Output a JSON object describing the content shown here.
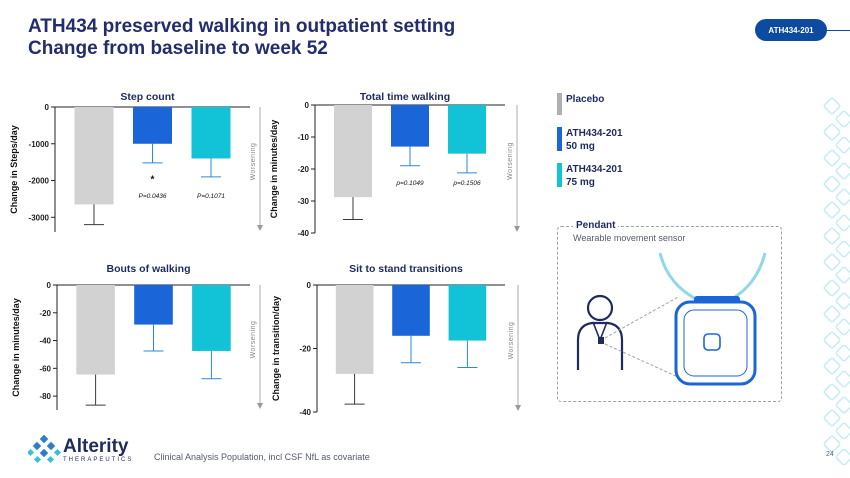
{
  "header": {
    "title_line1": "ATH434 preserved walking in outpatient setting",
    "title_line2": "Change from baseline to week 52",
    "tag": "ATH434-201"
  },
  "legend": [
    {
      "label": "Placebo",
      "sub": "",
      "color": "#aeb0b3"
    },
    {
      "label": "ATH434-201",
      "sub": "50 mg",
      "color": "#1a66d9"
    },
    {
      "label": "ATH434-201",
      "sub": "75 mg",
      "color": "#12c2d6"
    }
  ],
  "pendant": {
    "title": "Pendant",
    "subtitle": "Wearable movement sensor"
  },
  "worsening_label": "Worsening",
  "footer": {
    "brand": "Alterity",
    "brand_sub": "THERAPEUTICS",
    "note": "Clinical Analysis Population, incl CSF NfL as covariate",
    "page": "24"
  },
  "colors": {
    "placebo": "#d2d2d3",
    "dose50": "#1a66d9",
    "dose75": "#12c2d6",
    "errbar_placebo": "#3a3a3a",
    "errbar_active": "#2a8ad6"
  },
  "chart_data": [
    {
      "type": "bar",
      "title": "Step count",
      "ylabel": "Change in Steps/day",
      "categories": [
        "Placebo",
        "ATH434-201 50 mg",
        "ATH434-201 75 mg"
      ],
      "values": [
        -2650,
        -1000,
        -1400
      ],
      "errors": [
        550,
        520,
        500
      ],
      "ylim": [
        -3400,
        0
      ],
      "yticks": [
        0,
        -1000,
        -2000,
        -3000
      ],
      "ytick_labels": [
        "0",
        "-1000",
        "-2000",
        "-3000"
      ],
      "annotations": [
        {
          "bar": 1,
          "text": "*",
          "y": -2050
        },
        {
          "bar": 1,
          "text": "P=0.0436",
          "y": -2480
        },
        {
          "bar": 2,
          "text": "P=0.1071",
          "y": -2480
        }
      ]
    },
    {
      "type": "bar",
      "title": "Total time walking",
      "ylabel": "Change in minutes/day",
      "categories": [
        "Placebo",
        "ATH434-201 50 mg",
        "ATH434-201 75 mg"
      ],
      "values": [
        -28.8,
        -13,
        -15.2
      ],
      "errors": [
        7,
        6,
        6
      ],
      "ylim": [
        -40,
        0
      ],
      "yticks": [
        0,
        -10,
        -20,
        -30,
        -40
      ],
      "ytick_labels": [
        "0",
        "-10",
        "-20",
        "-30",
        "-40"
      ],
      "annotations": [
        {
          "bar": 1,
          "text": "p=0.1049",
          "y": -25
        },
        {
          "bar": 2,
          "text": "p=0.1506",
          "y": -25
        }
      ]
    },
    {
      "type": "bar",
      "title": "Bouts of walking",
      "ylabel": "Change in minutes/day",
      "categories": [
        "Placebo",
        "ATH434-201 50 mg",
        "ATH434-201 75 mg"
      ],
      "values": [
        -64.5,
        -28.5,
        -47.5
      ],
      "errors": [
        22,
        19,
        20
      ],
      "ylim": [
        -90,
        0
      ],
      "yticks": [
        0,
        -20,
        -40,
        -60,
        -80
      ],
      "ytick_labels": [
        "0",
        "-20",
        "-40",
        "-60",
        "-80"
      ],
      "annotations": []
    },
    {
      "type": "bar",
      "title": "Sit to stand transitions",
      "ylabel": "Change in transition/day",
      "categories": [
        "Placebo",
        "ATH434-201 50 mg",
        "ATH434-201 75 mg"
      ],
      "values": [
        -28,
        -16,
        -17.5
      ],
      "errors": [
        9.5,
        8.5,
        8.5
      ],
      "ylim": [
        -40,
        0
      ],
      "yticks": [
        0,
        -20,
        -40
      ],
      "ytick_labels": [
        "0",
        "-20",
        "-40"
      ],
      "annotations": []
    }
  ]
}
